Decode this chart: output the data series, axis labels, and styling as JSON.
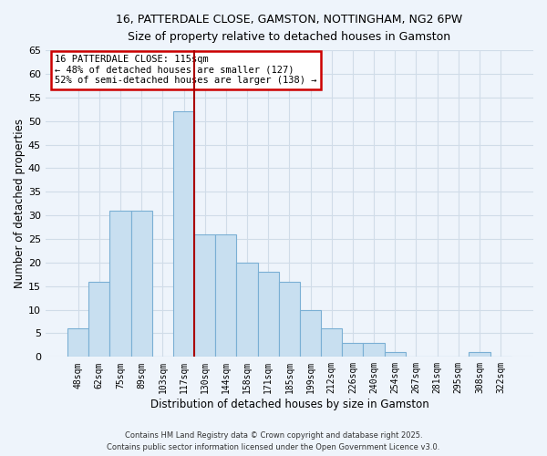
{
  "title_line1": "16, PATTERDALE CLOSE, GAMSTON, NOTTINGHAM, NG2 6PW",
  "title_line2": "Size of property relative to detached houses in Gamston",
  "xlabel": "Distribution of detached houses by size in Gamston",
  "ylabel": "Number of detached properties",
  "bar_labels": [
    "48sqm",
    "62sqm",
    "75sqm",
    "89sqm",
    "103sqm",
    "117sqm",
    "130sqm",
    "144sqm",
    "158sqm",
    "171sqm",
    "185sqm",
    "199sqm",
    "212sqm",
    "226sqm",
    "240sqm",
    "254sqm",
    "267sqm",
    "281sqm",
    "295sqm",
    "308sqm",
    "322sqm"
  ],
  "bar_heights": [
    6,
    16,
    31,
    31,
    0,
    52,
    26,
    26,
    20,
    18,
    16,
    10,
    6,
    3,
    3,
    1,
    0,
    0,
    0,
    1,
    0
  ],
  "bar_color": "#c8dff0",
  "bar_edge_color": "#7aafd4",
  "vline_bar_idx": 5,
  "vline_color": "#aa0000",
  "ylim": [
    0,
    65
  ],
  "yticks": [
    0,
    5,
    10,
    15,
    20,
    25,
    30,
    35,
    40,
    45,
    50,
    55,
    60,
    65
  ],
  "annotation_title": "16 PATTERDALE CLOSE: 115sqm",
  "annotation_line1": "← 48% of detached houses are smaller (127)",
  "annotation_line2": "52% of semi-detached houses are larger (138) →",
  "annotation_box_color": "#ffffff",
  "annotation_box_edge_color": "#cc0000",
  "footer_line1": "Contains HM Land Registry data © Crown copyright and database right 2025.",
  "footer_line2": "Contains public sector information licensed under the Open Government Licence v3.0.",
  "background_color": "#eef4fb",
  "grid_color": "#d0dce8"
}
